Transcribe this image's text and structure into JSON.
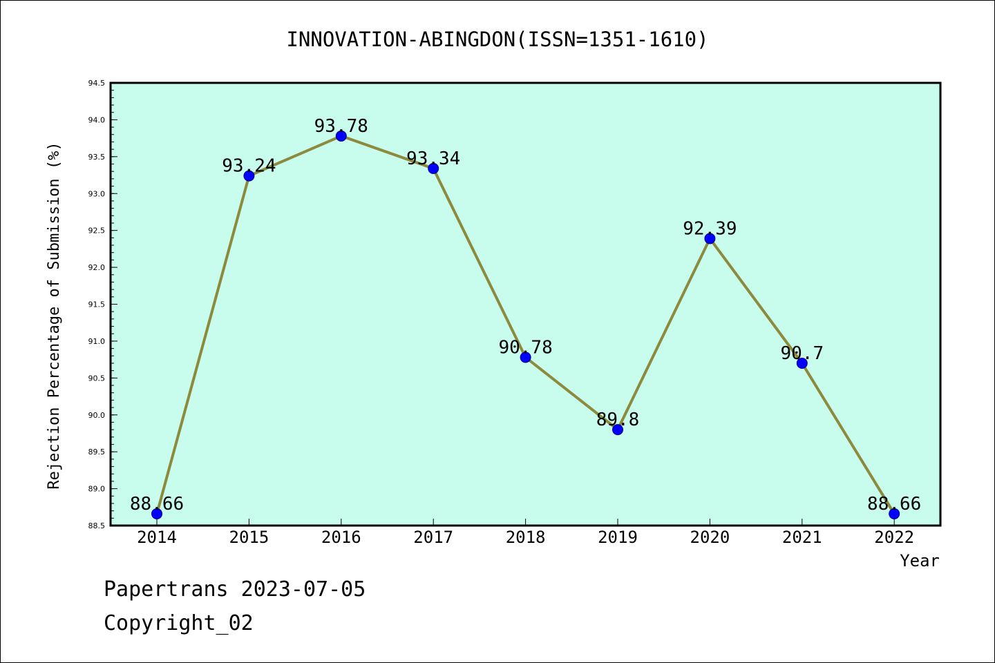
{
  "chart_data": {
    "type": "line",
    "title": "INNOVATION-ABINGDON(ISSN=1351-1610)",
    "xlabel": "Year",
    "ylabel": "Rejection Percentage of Submission (%)",
    "categories": [
      "2014",
      "2015",
      "2016",
      "2017",
      "2018",
      "2019",
      "2020",
      "2021",
      "2022"
    ],
    "values": [
      88.66,
      93.24,
      93.78,
      93.34,
      90.78,
      89.8,
      92.39,
      90.7,
      88.66
    ],
    "data_labels": [
      "88.66",
      "93.24",
      "93.78",
      "93.34",
      "90.78",
      "89.8",
      "92.39",
      "90.7",
      "88.66"
    ],
    "ylim": [
      88.5,
      94.5
    ],
    "yticks": [
      "88.5",
      "89.0",
      "89.5",
      "90.0",
      "90.5",
      "91.0",
      "91.5",
      "92.0",
      "92.5",
      "93.0",
      "93.5",
      "94.0",
      "94.5"
    ],
    "grid": false,
    "colors": {
      "plot_background": "#c8fced",
      "line": "#8c8a3c",
      "marker": "#0000ff",
      "marker_edge": "#00008b"
    }
  },
  "footer": {
    "line1": "Papertrans 2023-07-05",
    "line2": "Copyright_02"
  }
}
